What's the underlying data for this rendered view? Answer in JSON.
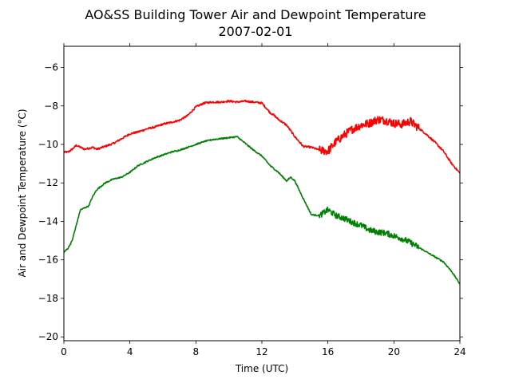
{
  "chart_data": {
    "type": "line",
    "title": "AO&SS Building Tower Air and Dewpoint Temperature",
    "subtitle": "2007-02-01",
    "xlabel": "Time (UTC)",
    "ylabel": "Air and Dewpoint Temperature (°C)",
    "xlim": [
      0,
      24
    ],
    "ylim": [
      -20.2,
      -4.9
    ],
    "xticks": [
      0,
      4,
      8,
      12,
      16,
      20,
      24
    ],
    "xtick_labels": [
      "0",
      "4",
      "8",
      "12",
      "16",
      "20",
      "24"
    ],
    "yticks": [
      -20,
      -18,
      -16,
      -14,
      -12,
      -10,
      -8,
      -6
    ],
    "ytick_labels": [
      "−20",
      "−18",
      "−16",
      "−14",
      "−12",
      "−10",
      "−8",
      "−6"
    ],
    "grid": false,
    "legend": "none",
    "series": [
      {
        "color": "#ff0000",
        "x": [
          0,
          0.25,
          0.5,
          0.75,
          1.0,
          1.25,
          1.5,
          1.75,
          2.0,
          2.5,
          3.0,
          3.5,
          4.0,
          4.5,
          5.0,
          5.5,
          6.0,
          6.5,
          7.0,
          7.5,
          8.0,
          8.5,
          9.0,
          9.5,
          10.0,
          10.5,
          11.0,
          11.5,
          12.0,
          12.25,
          12.5,
          12.75,
          13.0,
          13.5,
          14.0,
          14.5,
          15.0,
          15.5,
          16.0,
          16.25,
          16.5,
          17.0,
          17.5,
          18.0,
          18.5,
          19.0,
          19.5,
          20.0,
          20.5,
          21.0,
          21.5,
          22.0,
          22.5,
          23.0,
          23.5,
          24.0
        ],
        "y": [
          -10.4,
          -10.4,
          -10.25,
          -10.05,
          -10.15,
          -10.25,
          -10.2,
          -10.15,
          -10.25,
          -10.1,
          -9.95,
          -9.7,
          -9.45,
          -9.35,
          -9.2,
          -9.1,
          -8.95,
          -8.85,
          -8.75,
          -8.5,
          -8.05,
          -7.85,
          -7.8,
          -7.8,
          -7.75,
          -7.8,
          -7.75,
          -7.8,
          -7.85,
          -8.1,
          -8.35,
          -8.5,
          -8.7,
          -9.0,
          -9.6,
          -10.1,
          -10.15,
          -10.3,
          -10.35,
          -10.1,
          -9.85,
          -9.5,
          -9.2,
          -9.0,
          -8.9,
          -8.7,
          -8.75,
          -8.9,
          -8.95,
          -8.8,
          -9.15,
          -9.5,
          -9.9,
          -10.35,
          -11.0,
          -11.5
        ]
      },
      {
        "color": "#008000",
        "x": [
          0,
          0.25,
          0.5,
          0.75,
          1.0,
          1.25,
          1.5,
          1.75,
          2.0,
          2.5,
          3.0,
          3.5,
          4.0,
          4.5,
          5.0,
          5.5,
          6.0,
          6.5,
          7.0,
          7.5,
          8.0,
          8.5,
          9.0,
          9.5,
          10.0,
          10.5,
          11.0,
          11.5,
          12.0,
          12.5,
          13.0,
          13.5,
          13.75,
          14.0,
          14.5,
          15.0,
          15.5,
          16.0,
          16.5,
          17.0,
          17.5,
          18.0,
          18.5,
          19.0,
          19.5,
          20.0,
          20.5,
          21.0,
          21.5,
          22.0,
          22.5,
          23.0,
          23.5,
          24.0
        ],
        "y": [
          -15.6,
          -15.4,
          -15.0,
          -14.2,
          -13.4,
          -13.3,
          -13.2,
          -12.7,
          -12.35,
          -12.0,
          -11.8,
          -11.7,
          -11.45,
          -11.1,
          -10.9,
          -10.7,
          -10.55,
          -10.4,
          -10.3,
          -10.15,
          -10.0,
          -9.85,
          -9.75,
          -9.7,
          -9.65,
          -9.6,
          -9.95,
          -10.3,
          -10.6,
          -11.1,
          -11.45,
          -11.9,
          -11.7,
          -11.9,
          -12.8,
          -13.65,
          -13.7,
          -13.4,
          -13.7,
          -13.85,
          -14.05,
          -14.2,
          -14.45,
          -14.55,
          -14.6,
          -14.75,
          -14.9,
          -15.1,
          -15.35,
          -15.6,
          -15.85,
          -16.1,
          -16.6,
          -17.25
        ]
      }
    ]
  }
}
